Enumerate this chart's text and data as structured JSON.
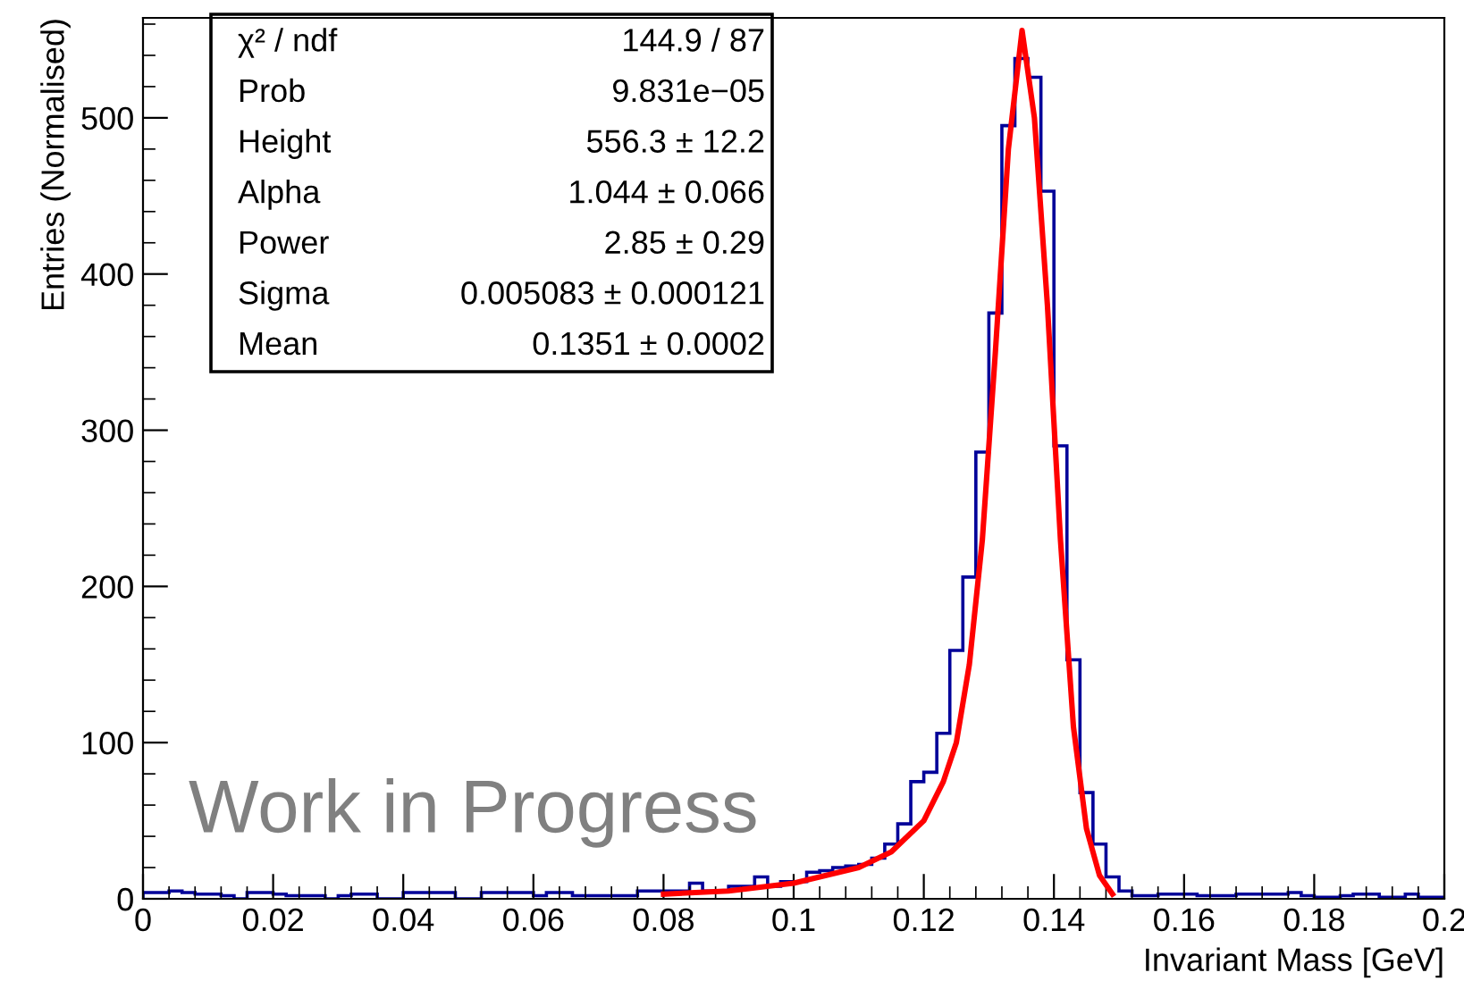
{
  "chart_data": {
    "type": "histogram",
    "xlabel": "Invariant Mass [GeV]",
    "ylabel": "Entries (Normalised)",
    "bins": [
      0,
      0.002,
      0.004,
      0.006,
      0.008,
      0.01,
      0.012,
      0.014,
      0.016,
      0.018,
      0.02,
      0.022,
      0.024,
      0.026,
      0.028,
      0.03,
      0.032,
      0.034,
      0.036,
      0.038,
      0.04,
      0.042,
      0.044,
      0.046,
      0.048,
      0.05,
      0.052,
      0.054,
      0.056,
      0.058,
      0.06,
      0.062,
      0.064,
      0.066,
      0.068,
      0.07,
      0.072,
      0.074,
      0.076,
      0.078,
      0.08,
      0.082,
      0.084,
      0.086,
      0.088,
      0.09,
      0.092,
      0.094,
      0.096,
      0.098,
      0.1,
      0.102,
      0.104,
      0.106,
      0.108,
      0.11,
      0.112,
      0.114,
      0.116,
      0.118,
      0.12,
      0.122,
      0.124,
      0.126,
      0.128,
      0.13,
      0.132,
      0.134,
      0.136,
      0.138,
      0.14,
      0.142,
      0.144,
      0.146,
      0.148,
      0.15,
      0.152,
      0.154,
      0.156,
      0.158,
      0.16,
      0.162,
      0.164,
      0.166,
      0.168,
      0.17,
      0.172,
      0.174,
      0.176,
      0.178,
      0.18,
      0.182,
      0.184,
      0.186,
      0.188,
      0.19,
      0.192,
      0.194,
      0.196,
      0.198,
      0.2
    ],
    "values": [
      4,
      4,
      5,
      4,
      3,
      3,
      2,
      0,
      4,
      4,
      3,
      2,
      2,
      2,
      0,
      2,
      3,
      3,
      0,
      0,
      4,
      4,
      4,
      4,
      0,
      0,
      4,
      4,
      4,
      4,
      2,
      4,
      4,
      2,
      2,
      2,
      2,
      2,
      5,
      5,
      5,
      5,
      10,
      5,
      5,
      8,
      8,
      14,
      8,
      11,
      11,
      17,
      18,
      20,
      21,
      22,
      26,
      35,
      48,
      75,
      81,
      106,
      159,
      206,
      286,
      375,
      495,
      538,
      526,
      453,
      290,
      153,
      68,
      35,
      14,
      5,
      2,
      2,
      3,
      3,
      3,
      2,
      2,
      2,
      3,
      3,
      3,
      3,
      4,
      2,
      1,
      1,
      2,
      3,
      3,
      1,
      1,
      3,
      1,
      1
    ],
    "color": "#000099",
    "series": [
      {
        "type": "line",
        "color": "#ff0000",
        "x": [
          0.08,
          0.09,
          0.1,
          0.11,
          0.115,
          0.12,
          0.123,
          0.125,
          0.127,
          0.129,
          0.131,
          0.133,
          0.1351,
          0.137,
          0.139,
          0.141,
          0.143,
          0.145,
          0.147,
          0.149
        ],
        "values": [
          3,
          5,
          10,
          20,
          30,
          50,
          75,
          100,
          150,
          230,
          350,
          480,
          556,
          500,
          380,
          230,
          110,
          45,
          15,
          3
        ]
      }
    ],
    "xlim": [
      0,
      0.2
    ],
    "ylim": [
      0,
      564
    ],
    "xticks": [
      0,
      0.02,
      0.04,
      0.06,
      0.08,
      0.1,
      0.12,
      0.14,
      0.16,
      0.18,
      0.2
    ],
    "yticks": [
      0,
      100,
      200,
      300,
      400,
      500
    ],
    "annotations": [
      "χ² / ndf",
      "144.9 / 87",
      "Prob",
      "9.831e−05",
      "Height",
      "556.3 ± 12.2",
      "Alpha",
      "1.044 ± 0.066",
      "Power",
      "2.85 ± 0.29",
      "Sigma",
      "0.005083 ± 0.000121",
      "Mean",
      "0.1351 ± 0.0002",
      "Work in Progress"
    ],
    "grid": false,
    "legend": false
  }
}
